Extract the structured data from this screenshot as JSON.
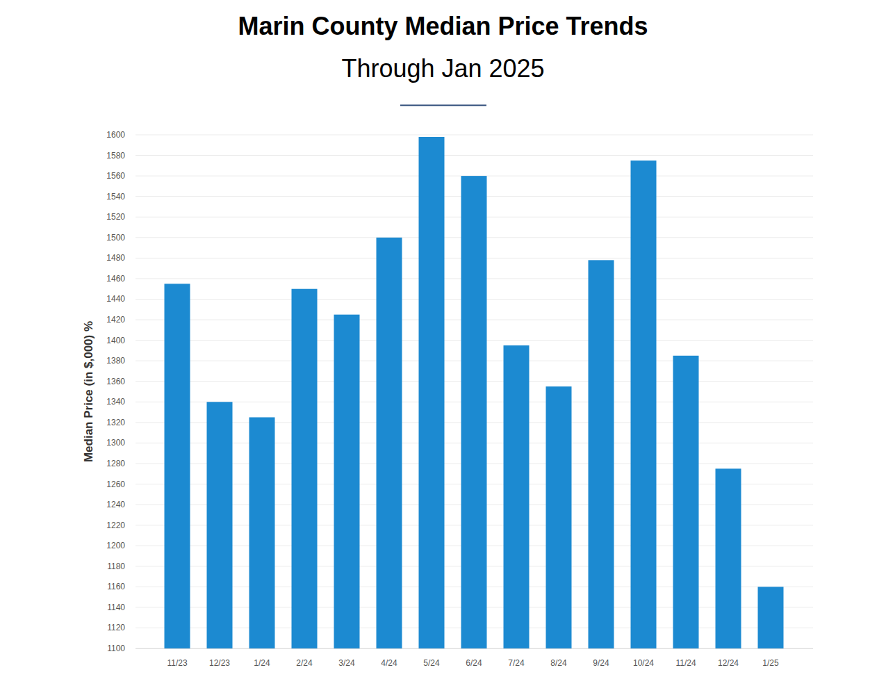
{
  "chart_data": {
    "type": "bar",
    "title": "Marin County Median Price Trends",
    "subtitle": "Through Jan 2025",
    "y_label": "Median Price (in $,000) %",
    "categories": [
      "11/23",
      "12/23",
      "1/24",
      "2/24",
      "3/24",
      "4/24",
      "5/24",
      "6/24",
      "7/24",
      "8/24",
      "9/24",
      "10/24",
      "11/24",
      "12/24",
      "1/25"
    ],
    "values": [
      1455,
      1340,
      1325,
      1450,
      1425,
      1500,
      1598,
      1560,
      1395,
      1355,
      1478,
      1575,
      1385,
      1275,
      1160
    ],
    "color": "#1c8ad1",
    "ylim": [
      1100,
      1600
    ],
    "yticks": [
      1100,
      1120,
      1140,
      1160,
      1180,
      1200,
      1220,
      1240,
      1260,
      1280,
      1300,
      1320,
      1340,
      1360,
      1380,
      1400,
      1420,
      1440,
      1460,
      1480,
      1500,
      1520,
      1540,
      1560,
      1580,
      1600
    ],
    "grid": true
  }
}
